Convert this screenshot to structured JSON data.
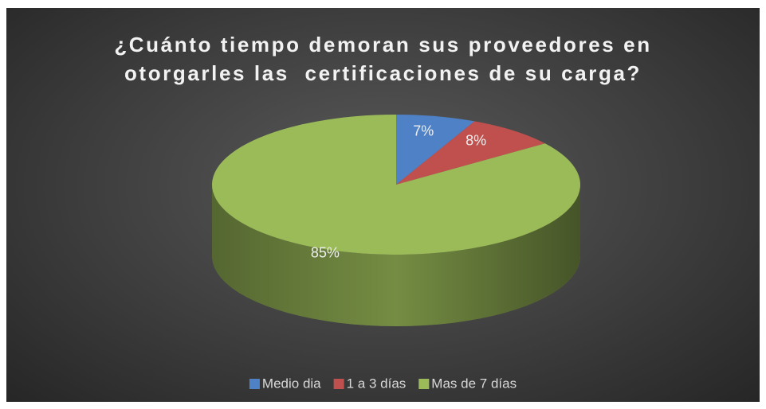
{
  "chart_data": {
    "type": "pie",
    "title": "¿Cuánto tiempo demoran sus proveedores en otorgarles las  certificaciones de su carga?",
    "categories": [
      "Medio dia",
      "1 a 3 días",
      "Mas de 7 días"
    ],
    "values": [
      7,
      8,
      85
    ],
    "value_labels": [
      "7%",
      "8%",
      "85%"
    ],
    "colors": [
      "#4f81c7",
      "#c0504d",
      "#9bbb59"
    ],
    "legend": "bottom"
  }
}
